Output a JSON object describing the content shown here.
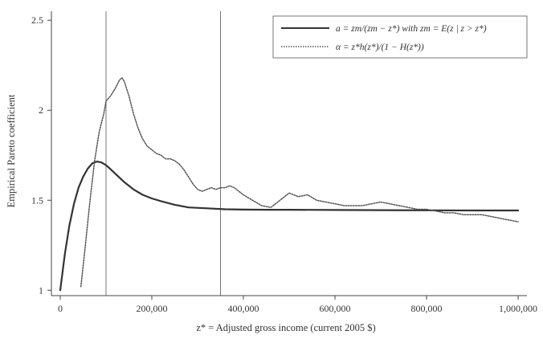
{
  "chart_data": {
    "type": "line",
    "xlabel": "z* = Adjusted gross income (current 2005 $)",
    "ylabel": "Empirical Pareto coefficient",
    "xlim": [
      0,
      1000000
    ],
    "ylim": [
      0.97,
      2.55
    ],
    "x_ticks": [
      0,
      200000,
      400000,
      600000,
      800000,
      1000000
    ],
    "x_tick_labels": [
      "0",
      "200,000",
      "400,000",
      "600,000",
      "800,000",
      "1,000,000"
    ],
    "y_ticks": [
      1,
      1.5,
      2,
      2.5
    ],
    "y_tick_labels": [
      "1",
      "1.5",
      "2",
      "2.5"
    ],
    "grid": false,
    "legend_position": "top-right",
    "vertical_lines": [
      100000,
      350000
    ],
    "series": [
      {
        "name": "a = zm/(zm − z*) with zm = E(z | z > z*)",
        "style": "solid",
        "color": "#333333",
        "x": [
          0,
          10000,
          20000,
          30000,
          40000,
          50000,
          60000,
          70000,
          80000,
          90000,
          100000,
          110000,
          120000,
          140000,
          160000,
          180000,
          200000,
          220000,
          250000,
          280000,
          320000,
          360000,
          400000,
          450000,
          500000,
          600000,
          700000,
          800000,
          900000,
          1000000
        ],
        "y": [
          1.0,
          1.2,
          1.36,
          1.48,
          1.57,
          1.63,
          1.675,
          1.705,
          1.715,
          1.71,
          1.695,
          1.672,
          1.648,
          1.6,
          1.56,
          1.53,
          1.51,
          1.495,
          1.475,
          1.46,
          1.455,
          1.45,
          1.448,
          1.447,
          1.447,
          1.446,
          1.445,
          1.444,
          1.443,
          1.443
        ]
      },
      {
        "name": "α = z*h(z*)/(1 − H(z*))",
        "style": "dotted",
        "color": "#555555",
        "x": [
          45000,
          55000,
          65000,
          75000,
          85000,
          95000,
          100000,
          110000,
          120000,
          130000,
          135000,
          140000,
          150000,
          160000,
          170000,
          180000,
          190000,
          200000,
          210000,
          220000,
          230000,
          240000,
          250000,
          260000,
          270000,
          280000,
          290000,
          300000,
          310000,
          320000,
          330000,
          340000,
          350000,
          360000,
          370000,
          380000,
          390000,
          400000,
          420000,
          440000,
          460000,
          480000,
          500000,
          520000,
          540000,
          560000,
          580000,
          600000,
          620000,
          640000,
          660000,
          680000,
          700000,
          720000,
          740000,
          760000,
          780000,
          800000,
          820000,
          840000,
          860000,
          880000,
          900000,
          920000,
          940000,
          960000,
          980000,
          1000000
        ],
        "y": [
          1.02,
          1.25,
          1.5,
          1.72,
          1.88,
          1.98,
          2.05,
          2.08,
          2.12,
          2.17,
          2.18,
          2.16,
          2.08,
          1.98,
          1.9,
          1.84,
          1.8,
          1.78,
          1.76,
          1.75,
          1.73,
          1.73,
          1.72,
          1.7,
          1.67,
          1.63,
          1.59,
          1.56,
          1.55,
          1.56,
          1.57,
          1.56,
          1.57,
          1.57,
          1.58,
          1.57,
          1.55,
          1.53,
          1.5,
          1.47,
          1.46,
          1.5,
          1.54,
          1.52,
          1.53,
          1.5,
          1.49,
          1.48,
          1.47,
          1.47,
          1.47,
          1.48,
          1.49,
          1.48,
          1.47,
          1.46,
          1.45,
          1.45,
          1.44,
          1.43,
          1.43,
          1.42,
          1.42,
          1.42,
          1.41,
          1.4,
          1.39,
          1.38
        ]
      }
    ]
  }
}
